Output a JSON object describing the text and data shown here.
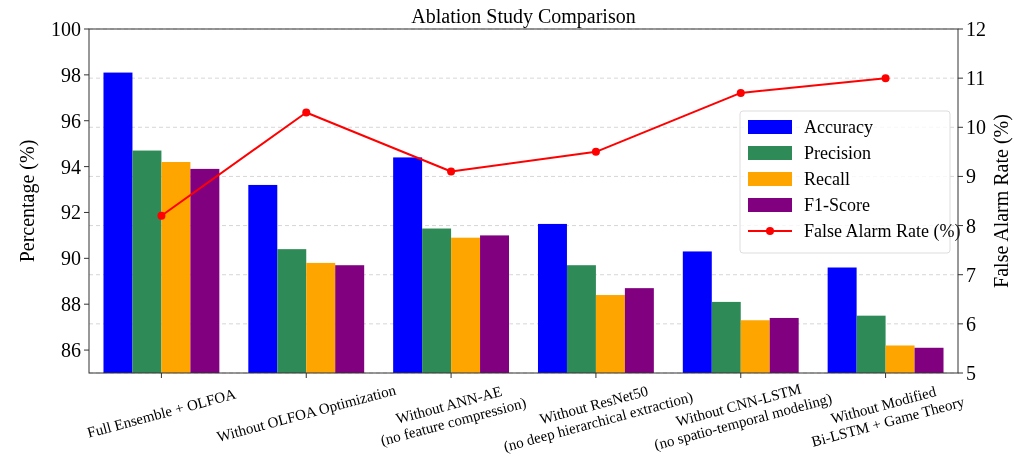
{
  "chart_data": {
    "type": "bar",
    "title": "Ablation Study Comparison",
    "ylabel": "Percentage (%)",
    "y2label": "False Alarm Rate (%)",
    "categories": [
      "Full Ensemble + OLFOA",
      "Without OLFOA Optimization",
      "Without ANN-AE\n(no feature compression)",
      "Without ResNet50\n(no deep hierarchical extraction)",
      "Without CNN-LSTM\n(no spatio-temporal modeling)",
      "Without Modified\nBi-LSTM + Game Theory"
    ],
    "series": [
      {
        "name": "Accuracy",
        "color": "#0000ff",
        "values": [
          98.1,
          93.2,
          94.4,
          91.5,
          90.3,
          89.6
        ]
      },
      {
        "name": "Precision",
        "color": "#2e8b57",
        "values": [
          94.7,
          90.4,
          91.3,
          89.7,
          88.1,
          87.5
        ]
      },
      {
        "name": "Recall",
        "color": "#ffa500",
        "values": [
          94.2,
          89.8,
          90.9,
          88.4,
          87.3,
          86.2
        ]
      },
      {
        "name": "F1-Score",
        "color": "#800080",
        "values": [
          93.9,
          89.7,
          91.0,
          88.7,
          87.4,
          86.1
        ]
      },
      {
        "name": "False Alarm Rate (%)",
        "type": "line",
        "axis": "y2",
        "color": "#ff0000",
        "marker": "circle",
        "values": [
          8.2,
          10.3,
          9.1,
          9.5,
          10.7,
          11.0
        ]
      }
    ],
    "ylim": [
      85,
      100
    ],
    "yticks": [
      86,
      88,
      90,
      92,
      94,
      96,
      98,
      100
    ],
    "y2lim": [
      5,
      12
    ],
    "y2ticks": [
      5,
      6,
      7,
      8,
      9,
      10,
      11,
      12
    ],
    "grid": "y2",
    "legend": "top right"
  }
}
